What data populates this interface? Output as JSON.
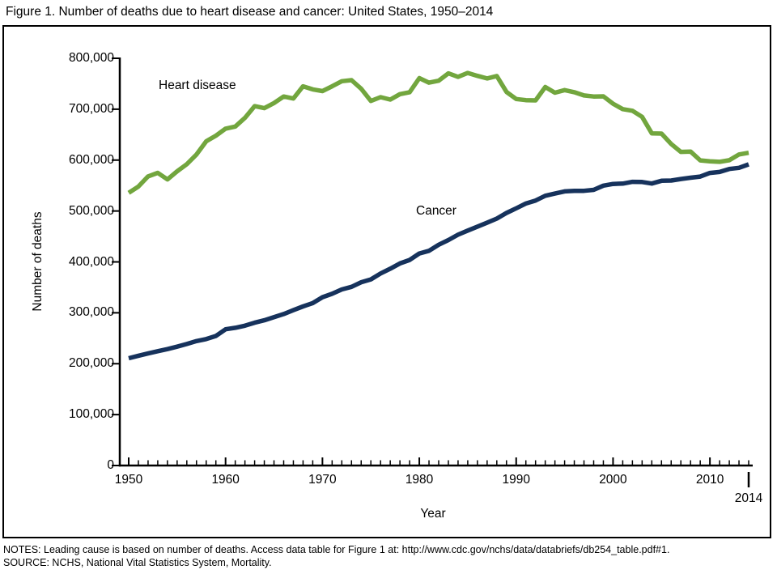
{
  "title": "Figure 1. Number of deaths due to heart disease and cancer: United States, 1950–2014",
  "notes": "NOTES: Leading cause is based on number of deaths. Access data table for Figure 1 at: http://www.cdc.gov/nchs/data/databriefs/db254_table.pdf#1.",
  "source": "SOURCE: NCHS, National Vital Statistics System, Mortality.",
  "chart_data": {
    "type": "line",
    "title": "Figure 1. Number of deaths due to heart disease and cancer: United States, 1950–2014",
    "xlabel": "Year",
    "ylabel": "Number of deaths",
    "xlim": [
      1950,
      2014
    ],
    "ylim": [
      0,
      800000
    ],
    "grid": false,
    "legend_position": "inline-labels-on-plot",
    "x_ticks_major": [
      1950,
      1960,
      1970,
      1980,
      1990,
      2000,
      2010
    ],
    "x_end_tick": {
      "year": 2014,
      "label": "2014"
    },
    "x_minor_tick_every": 1,
    "y_ticks": [
      0,
      100000,
      200000,
      300000,
      400000,
      500000,
      600000,
      700000,
      800000
    ],
    "y_tick_labels": [
      "0",
      "100,000",
      "200,000",
      "300,000",
      "400,000",
      "500,000",
      "600,000",
      "700,000",
      "800,000"
    ],
    "x": [
      1950,
      1951,
      1952,
      1953,
      1954,
      1955,
      1956,
      1957,
      1958,
      1959,
      1960,
      1961,
      1962,
      1963,
      1964,
      1965,
      1966,
      1967,
      1968,
      1969,
      1970,
      1971,
      1972,
      1973,
      1974,
      1975,
      1976,
      1977,
      1978,
      1979,
      1980,
      1981,
      1982,
      1983,
      1984,
      1985,
      1986,
      1987,
      1988,
      1989,
      1990,
      1991,
      1992,
      1993,
      1994,
      1995,
      1996,
      1997,
      1998,
      1999,
      2000,
      2001,
      2002,
      2003,
      2004,
      2005,
      2006,
      2007,
      2008,
      2009,
      2010,
      2011,
      2012,
      2013,
      2014
    ],
    "series": [
      {
        "name": "Heart disease",
        "color": "#72a63e",
        "values": [
          535705,
          548000,
          568000,
          575000,
          562000,
          578000,
          592000,
          611000,
          637000,
          648000,
          661712,
          666000,
          683000,
          706000,
          702000,
          712000,
          725000,
          721000,
          745000,
          739000,
          735542,
          745000,
          755000,
          757075,
          740000,
          716215,
          723729,
          718850,
          729510,
          733293,
          761085,
          752081,
          756000,
          770345,
          763623,
          771169,
          765490,
          760353,
          765156,
          733867,
          720058,
          717706,
          717360,
          743460,
          732409,
          737563,
          733361,
          726974,
          724859,
          725192,
          710760,
          700142,
          696947,
          685089,
          652486,
          652091,
          631636,
          616067,
          616828,
          599413,
          597689,
          596577,
          599711,
          611105,
          614348
        ]
      },
      {
        "name": "Cancer",
        "color": "#16325c",
        "values": [
          210733,
          215600,
          220100,
          224500,
          228700,
          233500,
          238800,
          244400,
          248500,
          254400,
          267627,
          270500,
          274700,
          280600,
          285400,
          291600,
          297600,
          305200,
          312600,
          319000,
          330730,
          337400,
          346000,
          351055,
          360000,
          365693,
          377300,
          386700,
          396992,
          403778,
          416509,
          421847,
          433795,
          442986,
          453492,
          461563,
          469376,
          476927,
          485048,
          496152,
          505322,
          514657,
          520578,
          529904,
          534310,
          538455,
          539533,
          539577,
          541532,
          549838,
          553091,
          553768,
          557271,
          556902,
          553888,
          559312,
          559888,
          562875,
          565469,
          567628,
          574743,
          576691,
          582623,
          584881,
          591699
        ]
      }
    ]
  }
}
